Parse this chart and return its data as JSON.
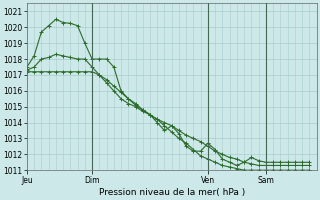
{
  "title": "Pression niveau de la mer( hPa )",
  "bg_color": "#cce8e8",
  "grid_color": "#aacccc",
  "line_color": "#2d6b2d",
  "marker": "+",
  "ylim": [
    1011,
    1021.5
  ],
  "yticks": [
    1011,
    1012,
    1013,
    1014,
    1015,
    1016,
    1017,
    1018,
    1019,
    1020,
    1021
  ],
  "xtick_labels": [
    "Jeu",
    "Dim",
    "Ven",
    "Sam"
  ],
  "xtick_positions": [
    0,
    9,
    25,
    33
  ],
  "vlines": [
    9,
    25,
    33
  ],
  "xlim": [
    0,
    40
  ],
  "series": [
    {
      "x": [
        0,
        1,
        2,
        3,
        4,
        5,
        6,
        7,
        8,
        9,
        10,
        11,
        12,
        13,
        14,
        15,
        16,
        17,
        18,
        19,
        20,
        21,
        22,
        23,
        24,
        25,
        26,
        27,
        28,
        29,
        30,
        31,
        32,
        33,
        34,
        35,
        36,
        37,
        38,
        39
      ],
      "y": [
        1017.5,
        1018.2,
        1019.7,
        1020.1,
        1020.5,
        1020.3,
        1020.25,
        1020.1,
        1019.0,
        1018.0,
        1018.0,
        1018.0,
        1017.5,
        1016.0,
        1015.5,
        1015.2,
        1014.8,
        1014.5,
        1014.0,
        1013.5,
        1013.8,
        1013.3,
        1012.5,
        1012.2,
        1012.2,
        1012.7,
        1012.3,
        1011.7,
        1011.5,
        1011.3,
        1011.5,
        1011.8,
        1011.6,
        1011.5,
        1011.5,
        1011.5,
        1011.5,
        1011.5,
        1011.5,
        1011.5
      ]
    },
    {
      "x": [
        0,
        1,
        2,
        3,
        4,
        5,
        6,
        7,
        8,
        9,
        10,
        11,
        12,
        13,
        14,
        15,
        16,
        17,
        18,
        19,
        20,
        21,
        22,
        23,
        24,
        25,
        26,
        27,
        28,
        29,
        30,
        31,
        32,
        33,
        34,
        35,
        36,
        37,
        38,
        39
      ],
      "y": [
        1017.3,
        1017.5,
        1018.0,
        1018.1,
        1018.3,
        1018.2,
        1018.1,
        1018.0,
        1018.0,
        1017.5,
        1017.0,
        1016.5,
        1016.0,
        1015.5,
        1015.2,
        1015.0,
        1014.7,
        1014.5,
        1014.2,
        1014.0,
        1013.8,
        1013.5,
        1013.2,
        1013.0,
        1012.8,
        1012.5,
        1012.2,
        1012.0,
        1011.8,
        1011.7,
        1011.5,
        1011.4,
        1011.3,
        1011.3,
        1011.3,
        1011.3,
        1011.3,
        1011.3,
        1011.3,
        1011.3
      ]
    },
    {
      "x": [
        0,
        1,
        2,
        3,
        4,
        5,
        6,
        7,
        8,
        9,
        10,
        11,
        12,
        13,
        14,
        15,
        16,
        17,
        18,
        19,
        20,
        21,
        22,
        23,
        24,
        25,
        26,
        27,
        28,
        29,
        30,
        31,
        32,
        33,
        34,
        35,
        36,
        37,
        38,
        39
      ],
      "y": [
        1017.2,
        1017.2,
        1017.2,
        1017.2,
        1017.2,
        1017.2,
        1017.2,
        1017.2,
        1017.2,
        1017.2,
        1017.0,
        1016.7,
        1016.3,
        1015.9,
        1015.5,
        1015.1,
        1014.8,
        1014.5,
        1014.2,
        1013.8,
        1013.4,
        1013.0,
        1012.7,
        1012.3,
        1011.9,
        1011.7,
        1011.5,
        1011.3,
        1011.2,
        1011.1,
        1011.0,
        1011.0,
        1011.0,
        1011.0,
        1011.0,
        1011.0,
        1011.0,
        1011.0,
        1011.0,
        1011.0
      ]
    }
  ]
}
